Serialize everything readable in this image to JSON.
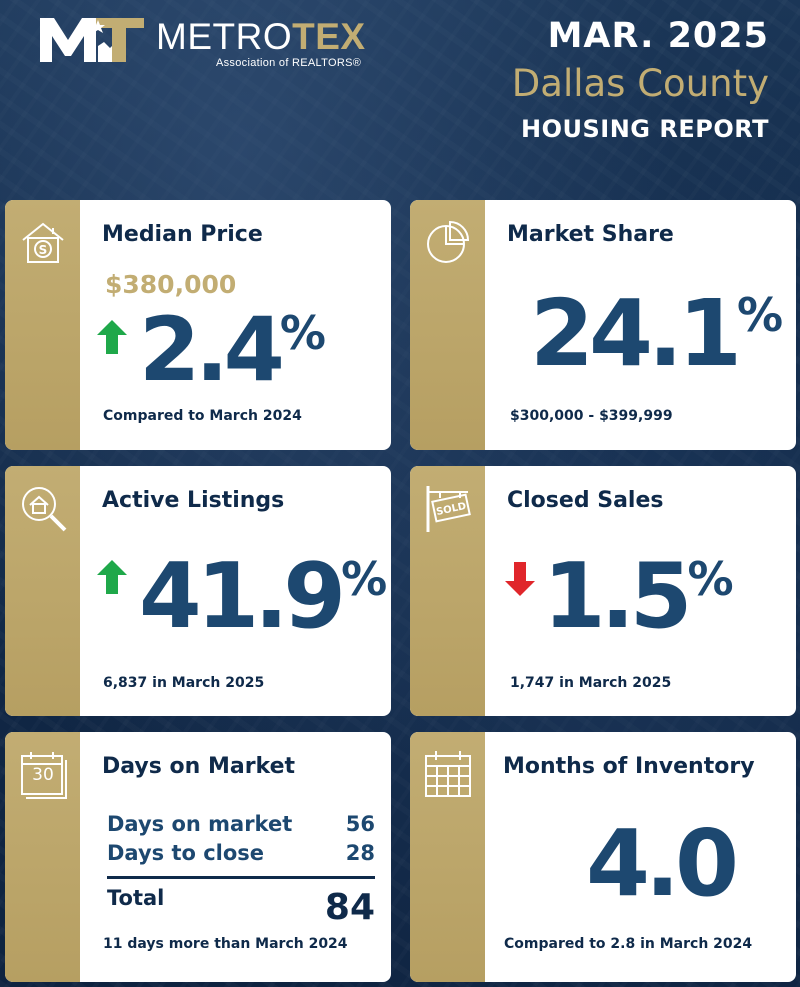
{
  "brand": {
    "name_part1": "METRO",
    "name_part2": "TEX",
    "tagline": "Association of REALTORS®",
    "gold": "#c2ad73",
    "navy": "#1d4870"
  },
  "header": {
    "date": "MAR. 2025",
    "county": "Dallas County",
    "report": "HOUSING REPORT"
  },
  "cards": {
    "median_price": {
      "icon": "house-dollar-icon",
      "title": "Median Price",
      "price": "$380,000",
      "direction": "up",
      "value": "2.4",
      "unit": "%",
      "note": "Compared to March 2024"
    },
    "market_share": {
      "icon": "pie-chart-icon",
      "title": "Market Share",
      "value": "24.1",
      "unit": "%",
      "note": "$300,000 - $399,999"
    },
    "active_listings": {
      "icon": "magnifier-house-icon",
      "title": "Active Listings",
      "direction": "up",
      "value": "41.9",
      "unit": "%",
      "note": "6,837 in March 2025"
    },
    "closed_sales": {
      "icon": "sold-sign-icon",
      "title": "Closed Sales",
      "direction": "down",
      "value": "1.5",
      "unit": "%",
      "note": "1,747 in March 2025"
    },
    "days_on_market": {
      "icon": "calendar-30-icon",
      "title": "Days on Market",
      "calendar_number": "30",
      "rows": [
        {
          "label": "Days on market",
          "value": "56"
        },
        {
          "label": "Days to close",
          "value": "28"
        }
      ],
      "total_label": "Total",
      "total_value": "84",
      "note": "11 days more than March 2024"
    },
    "months_inventory": {
      "icon": "calendar-grid-icon",
      "title": "Months of Inventory",
      "value": "4.0",
      "note": "Compared to 2.8 in March 2024"
    }
  }
}
